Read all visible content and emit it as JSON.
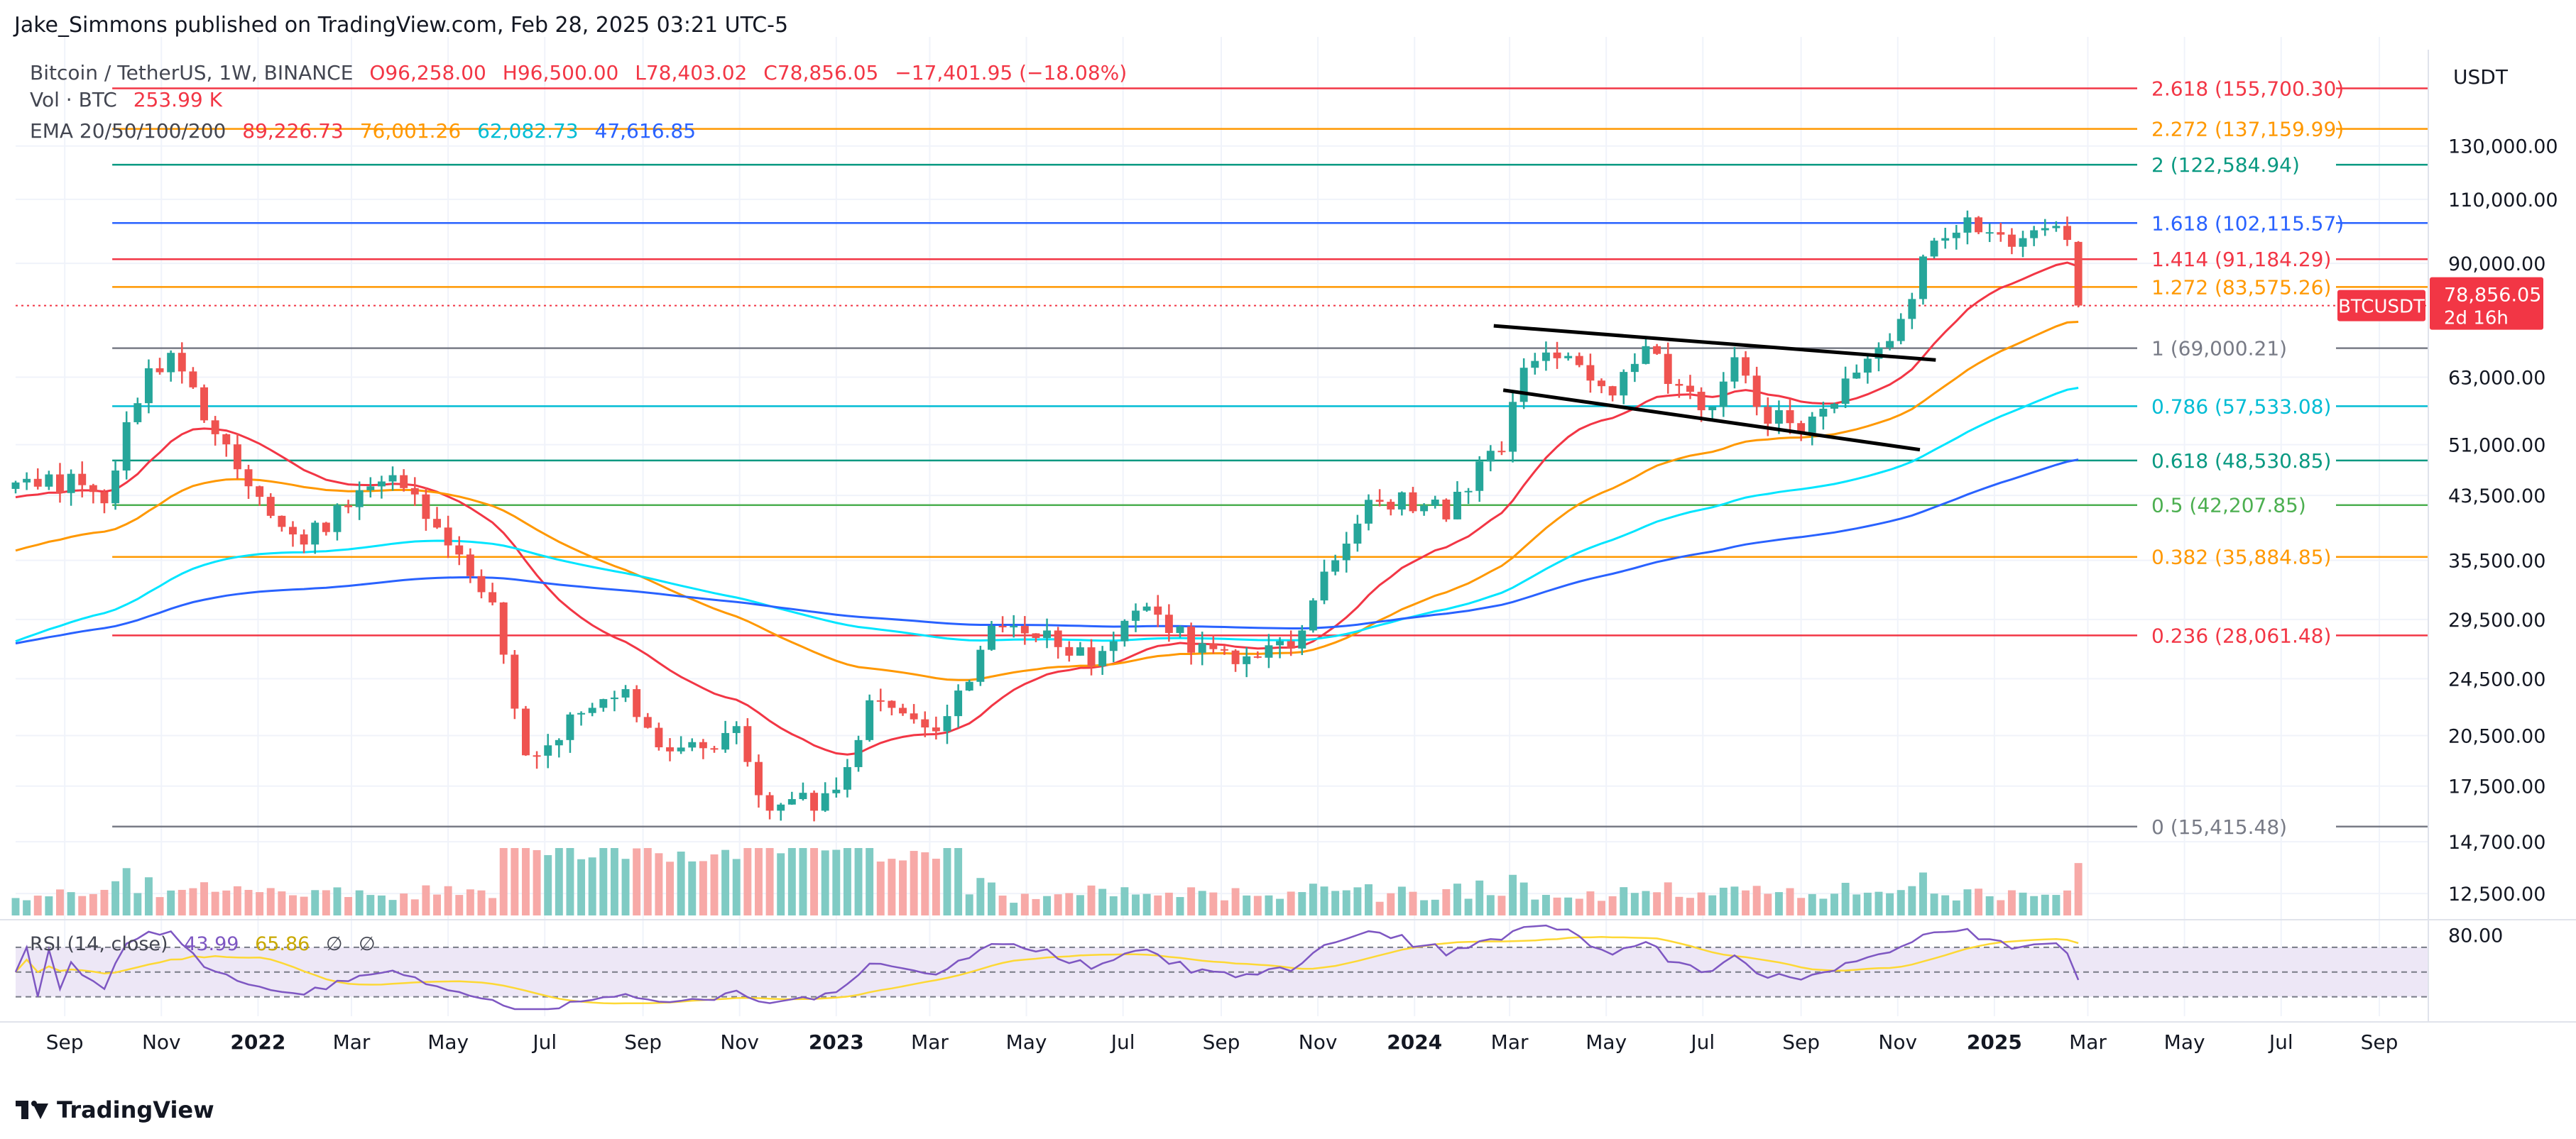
{
  "publisher": "Jake_Simmons published on TradingView.com, Feb 28, 2025 03:21 UTC-5",
  "symbol": {
    "title": "Bitcoin / TetherUS, 1W, BINANCE",
    "open": "O96,258.00",
    "high": "H96,500.00",
    "low": "L78,403.02",
    "close": "C78,856.05",
    "change": "−17,401.95 (−18.08%)"
  },
  "volume": {
    "label": "Vol · BTC",
    "value": "253.99 K"
  },
  "ema": {
    "label": "EMA 20/50/100/200",
    "values": [
      "89,226.73",
      "76,001.26",
      "62,082.73",
      "47,616.85"
    ],
    "colors": [
      "#f23645",
      "#ff9800",
      "#00e5ff",
      "#2962ff"
    ]
  },
  "rsi": {
    "label": "RSI (14, close)",
    "value": "43.99",
    "ma": "65.86",
    "extra1": "∅",
    "extra2": "∅",
    "upper_tick": "80.00"
  },
  "last_price": {
    "symbol": "BTCUSDT",
    "price": "78,856.05",
    "countdown": "2d 16h",
    "value": 78856.05
  },
  "brand": "TradingView",
  "colors": {
    "up": "#26a69a",
    "down": "#ef5350",
    "vol_up": "#80cbc4",
    "vol_down": "#f7a9a7",
    "grid": "#f0f3fa",
    "text": "#131722",
    "rsi_line": "#7e57c2",
    "rsi_ma": "#fdd835",
    "rsi_band": "#ede7f6"
  },
  "chart_data": {
    "type": "candlestick",
    "title": "Bitcoin / TetherUS, 1W, BINANCE",
    "y_scale": "log",
    "ylim": [
      11800,
      175000
    ],
    "x_range": [
      "2021-08-01",
      "2025-10-01"
    ],
    "currency_label": "USDT",
    "y_ticks": [
      {
        "value": 130000,
        "label": "130,000.00"
      },
      {
        "value": 110000,
        "label": "110,000.00"
      },
      {
        "value": 90000,
        "label": "90,000.00"
      },
      {
        "value": 63000,
        "label": "63,000.00"
      },
      {
        "value": 51000,
        "label": "51,000.00"
      },
      {
        "value": 43500,
        "label": "43,500.00"
      },
      {
        "value": 35500,
        "label": "35,500.00"
      },
      {
        "value": 29500,
        "label": "29,500.00"
      },
      {
        "value": 24500,
        "label": "24,500.00"
      },
      {
        "value": 20500,
        "label": "20,500.00"
      },
      {
        "value": 17500,
        "label": "17,500.00"
      },
      {
        "value": 14700,
        "label": "14,700.00"
      },
      {
        "value": 12500,
        "label": "12,500.00"
      }
    ],
    "x_ticks": [
      {
        "date": "2021-09-01",
        "label": "Sep",
        "bold": false
      },
      {
        "date": "2021-11-01",
        "label": "Nov",
        "bold": false
      },
      {
        "date": "2022-01-01",
        "label": "2022",
        "bold": true
      },
      {
        "date": "2022-03-01",
        "label": "Mar",
        "bold": false
      },
      {
        "date": "2022-05-01",
        "label": "May",
        "bold": false
      },
      {
        "date": "2022-07-01",
        "label": "Jul",
        "bold": false
      },
      {
        "date": "2022-09-01",
        "label": "Sep",
        "bold": false
      },
      {
        "date": "2022-11-01",
        "label": "Nov",
        "bold": false
      },
      {
        "date": "2023-01-01",
        "label": "2023",
        "bold": true
      },
      {
        "date": "2023-03-01",
        "label": "Mar",
        "bold": false
      },
      {
        "date": "2023-05-01",
        "label": "May",
        "bold": false
      },
      {
        "date": "2023-07-01",
        "label": "Jul",
        "bold": false
      },
      {
        "date": "2023-09-01",
        "label": "Sep",
        "bold": false
      },
      {
        "date": "2023-11-01",
        "label": "Nov",
        "bold": false
      },
      {
        "date": "2024-01-01",
        "label": "2024",
        "bold": true
      },
      {
        "date": "2024-03-01",
        "label": "Mar",
        "bold": false
      },
      {
        "date": "2024-05-01",
        "label": "May",
        "bold": false
      },
      {
        "date": "2024-07-01",
        "label": "Jul",
        "bold": false
      },
      {
        "date": "2024-09-01",
        "label": "Sep",
        "bold": false
      },
      {
        "date": "2024-11-01",
        "label": "Nov",
        "bold": false
      },
      {
        "date": "2025-01-01",
        "label": "2025",
        "bold": true
      },
      {
        "date": "2025-03-01",
        "label": "Mar",
        "bold": false
      },
      {
        "date": "2025-05-01",
        "label": "May",
        "bold": false
      },
      {
        "date": "2025-07-01",
        "label": "Jul",
        "bold": false
      },
      {
        "date": "2025-09-01",
        "label": "Sep",
        "bold": false
      }
    ],
    "fib_levels": [
      {
        "ratio": "2.618",
        "value": 155700.3,
        "label": "2.618 (155,700.30)",
        "color": "#f23645"
      },
      {
        "ratio": "2.272",
        "value": 137159.99,
        "label": "2.272 (137,159.99)",
        "color": "#ff9800"
      },
      {
        "ratio": "2",
        "value": 122584.94,
        "label": "2 (122,584.94)",
        "color": "#089981"
      },
      {
        "ratio": "1.618",
        "value": 102115.57,
        "label": "1.618 (102,115.57)",
        "color": "#2962ff"
      },
      {
        "ratio": "1.414",
        "value": 91184.29,
        "label": "1.414 (91,184.29)",
        "color": "#f23645"
      },
      {
        "ratio": "1.272",
        "value": 83575.26,
        "label": "1.272 (83,575.26)",
        "color": "#ff9800"
      },
      {
        "ratio": "1",
        "value": 69000.21,
        "label": "1 (69,000.21)",
        "color": "#787b86"
      },
      {
        "ratio": "0.786",
        "value": 57533.08,
        "label": "0.786 (57,533.08)",
        "color": "#00bcd4"
      },
      {
        "ratio": "0.618",
        "value": 48530.85,
        "label": "0.618 (48,530.85)",
        "color": "#089981"
      },
      {
        "ratio": "0.5",
        "value": 42207.85,
        "label": "0.5 (42,207.85)",
        "color": "#4caf50"
      },
      {
        "ratio": "0.382",
        "value": 35884.85,
        "label": "0.382 (35,884.85)",
        "color": "#ff9800"
      },
      {
        "ratio": "0.236",
        "value": 28061.48,
        "label": "0.236 (28,061.48)",
        "color": "#f23645"
      },
      {
        "ratio": "0",
        "value": 15415.48,
        "label": "0 (15,415.48)",
        "color": "#787b86"
      }
    ],
    "price_anchors": [
      {
        "date": "2021-08-01",
        "close": 44000
      },
      {
        "date": "2021-09-10",
        "close": 46000
      },
      {
        "date": "2021-09-26",
        "close": 43000
      },
      {
        "date": "2021-10-20",
        "close": 62000
      },
      {
        "date": "2021-11-08",
        "close": 66000
      },
      {
        "date": "2021-11-28",
        "close": 57000
      },
      {
        "date": "2021-12-20",
        "close": 47000
      },
      {
        "date": "2022-01-24",
        "close": 37000
      },
      {
        "date": "2022-03-28",
        "close": 47000
      },
      {
        "date": "2022-04-25",
        "close": 39000
      },
      {
        "date": "2022-05-30",
        "close": 30000
      },
      {
        "date": "2022-06-20",
        "close": 19500
      },
      {
        "date": "2022-08-15",
        "close": 23800
      },
      {
        "date": "2022-09-20",
        "close": 19200
      },
      {
        "date": "2022-11-02",
        "close": 20500
      },
      {
        "date": "2022-11-16",
        "close": 16500
      },
      {
        "date": "2022-12-28",
        "close": 16600
      },
      {
        "date": "2023-01-25",
        "close": 23000
      },
      {
        "date": "2023-03-08",
        "close": 20500
      },
      {
        "date": "2023-04-12",
        "close": 30000
      },
      {
        "date": "2023-06-14",
        "close": 25500
      },
      {
        "date": "2023-07-12",
        "close": 30500
      },
      {
        "date": "2023-08-28",
        "close": 26000
      },
      {
        "date": "2023-10-16",
        "close": 27500
      },
      {
        "date": "2023-11-06",
        "close": 35000
      },
      {
        "date": "2023-12-06",
        "close": 43500
      },
      {
        "date": "2024-01-20",
        "close": 41500
      },
      {
        "date": "2024-02-25",
        "close": 51500
      },
      {
        "date": "2024-03-12",
        "close": 68500
      },
      {
        "date": "2024-04-10",
        "close": 67000
      },
      {
        "date": "2024-05-01",
        "close": 60000
      },
      {
        "date": "2024-05-28",
        "close": 68000
      },
      {
        "date": "2024-07-01",
        "close": 57000
      },
      {
        "date": "2024-07-26",
        "close": 67000
      },
      {
        "date": "2024-08-06",
        "close": 56000
      },
      {
        "date": "2024-09-06",
        "close": 54000
      },
      {
        "date": "2024-10-18",
        "close": 67500
      },
      {
        "date": "2024-11-08",
        "close": 76000
      },
      {
        "date": "2024-11-20",
        "close": 94000
      },
      {
        "date": "2024-12-16",
        "close": 104000
      },
      {
        "date": "2025-01-10",
        "close": 94500
      },
      {
        "date": "2025-01-27",
        "close": 104000
      },
      {
        "date": "2025-02-17",
        "close": 96258
      },
      {
        "date": "2025-02-24",
        "close": 78856.05
      }
    ],
    "last_candle": {
      "date": "2025-02-24",
      "open": 96258.0,
      "high": 96500.0,
      "low": 78403.02,
      "close": 78856.05
    },
    "trendlines": [
      {
        "from": {
          "date": "2024-02-20",
          "value": 74000
        },
        "to": {
          "date": "2024-11-25",
          "value": 66500
        }
      },
      {
        "from": {
          "date": "2024-02-26",
          "value": 60500
        },
        "to": {
          "date": "2024-11-15",
          "value": 50200
        }
      }
    ],
    "ema_series": [
      {
        "name": "EMA 20",
        "period": 20,
        "color": "#f23645",
        "last": 89226.73
      },
      {
        "name": "EMA 50",
        "period": 50,
        "color": "#ff9800",
        "last": 76001.26
      },
      {
        "name": "EMA 100",
        "period": 100,
        "color": "#00e5ff",
        "last": 62082.73
      },
      {
        "name": "EMA 200",
        "period": 200,
        "color": "#2962ff",
        "last": 47616.85
      }
    ],
    "rsi_ylim": [
      20,
      90
    ]
  }
}
